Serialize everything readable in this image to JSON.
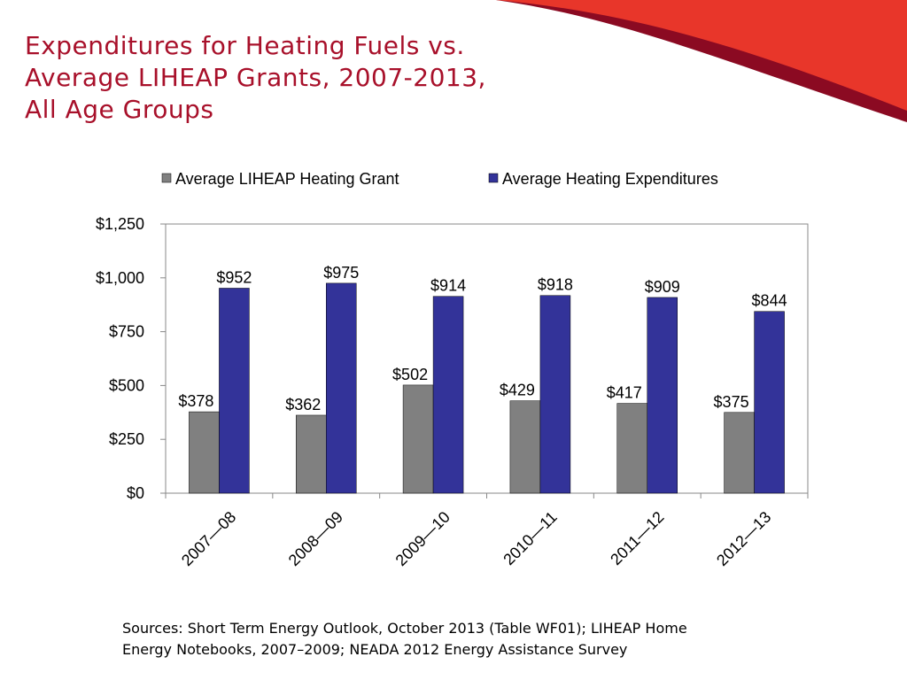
{
  "slide": {
    "title_lines": [
      "Expenditures for Heating Fuels vs.",
      "Average LIHEAP Grants, 2007-2013,",
      "All Age Groups"
    ],
    "source_lines": [
      "Sources: Short Term Energy Outlook, October 2013 (Table WF01); LIHEAP Home",
      "Energy Notebooks, 2007–2009; NEADA 2012 Energy Assistance Survey"
    ],
    "colors": {
      "title": "#a8102a",
      "swoosh_red": "#e8362a",
      "swoosh_dark": "#8b0a22"
    }
  },
  "chart_data": {
    "type": "bar",
    "title": "",
    "xlabel": "",
    "ylabel": "",
    "categories": [
      "2007—08",
      "2008—09",
      "2009—10",
      "2010—11",
      "2011—12",
      "2012—13"
    ],
    "series": [
      {
        "name": "Average LIHEAP Heating Grant",
        "values": [
          378,
          362,
          502,
          429,
          417,
          375
        ],
        "labels": [
          "$378",
          "$362",
          "$502",
          "$429",
          "$417",
          "$375"
        ],
        "color": "#808080"
      },
      {
        "name": "Average Heating Expenditures",
        "values": [
          952,
          975,
          914,
          918,
          909,
          844
        ],
        "labels": [
          "$952",
          "$975",
          "$914",
          "$918",
          "$909",
          "$844"
        ],
        "color": "#333399"
      }
    ],
    "ylim": [
      0,
      1250
    ],
    "yticks": [
      0,
      250,
      500,
      750,
      1000,
      1250
    ],
    "ytick_labels": [
      "$0",
      "$250",
      "$500",
      "$750",
      "$1,000",
      "$1,250"
    ],
    "grid": false,
    "legend_position": "top"
  }
}
